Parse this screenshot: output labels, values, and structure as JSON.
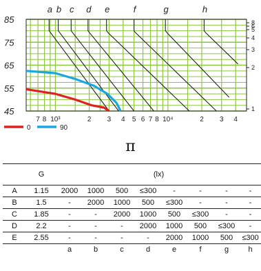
{
  "chart_data": [
    {
      "type": "line",
      "xscale": "log",
      "xlim": [
        550,
        50000
      ],
      "ylim": [
        45,
        85
      ],
      "y_ticks": [
        "85",
        "75",
        "65",
        "55",
        "45"
      ],
      "x_tick_labels": [
        "7",
        "8",
        "10³",
        "2",
        "3",
        "4",
        "5",
        "6",
        "7",
        "8",
        "10⁴",
        "2",
        "3",
        "4"
      ],
      "top_labels": [
        "a",
        "b",
        "c",
        "d",
        "e",
        "f",
        "g",
        "h"
      ],
      "right_labels": [
        "8",
        "6",
        "5",
        "4",
        "3",
        "2",
        "1"
      ],
      "series": [
        {
          "name": "0",
          "color": "#e02020",
          "x": [
            550,
            1000,
            1500,
            2100,
            2700,
            3000
          ],
          "y": [
            54.5,
            52.5,
            50,
            47.5,
            46.5,
            45
          ]
        },
        {
          "name": "90",
          "color": "#1aa6e0",
          "x": [
            550,
            1000,
            1500,
            2200,
            2900,
            3500,
            3800
          ],
          "y": [
            62.5,
            61.5,
            59,
            56,
            52.5,
            48.5,
            45
          ]
        }
      ],
      "grade_lines": [
        "a",
        "b",
        "c",
        "d",
        "e",
        "f",
        "g",
        "h"
      ],
      "grid": true,
      "legend": "bottom-left"
    }
  ],
  "symbol": "π",
  "table": {
    "col_header_g": "G",
    "col_header_lx": "(lx)",
    "rows": [
      {
        "label": "A",
        "g": "1.15",
        "cells": [
          "2000",
          "1000",
          "500",
          "≤300",
          "-",
          "-",
          "-",
          "-"
        ]
      },
      {
        "label": "B",
        "g": "1.5",
        "cells": [
          "-",
          "2000",
          "1000",
          "500",
          "≤300",
          "-",
          "-",
          "-"
        ]
      },
      {
        "label": "C",
        "g": "1.85",
        "cells": [
          "-",
          "-",
          "2000",
          "1000",
          "500",
          "≤300",
          "-",
          "-"
        ]
      },
      {
        "label": "D",
        "g": "2.2",
        "cells": [
          "-",
          "-",
          "-",
          "2000",
          "1000",
          "500",
          "≤300",
          "-"
        ]
      },
      {
        "label": "E",
        "g": "2.55",
        "cells": [
          "-",
          "-",
          "-",
          "-",
          "2000",
          "1000",
          "500",
          "≤300"
        ]
      }
    ],
    "footer": [
      "a",
      "b",
      "c",
      "d",
      "e",
      "f",
      "g",
      "h"
    ]
  },
  "colors": {
    "grid": "#8dc63f",
    "axis": "#222222"
  }
}
